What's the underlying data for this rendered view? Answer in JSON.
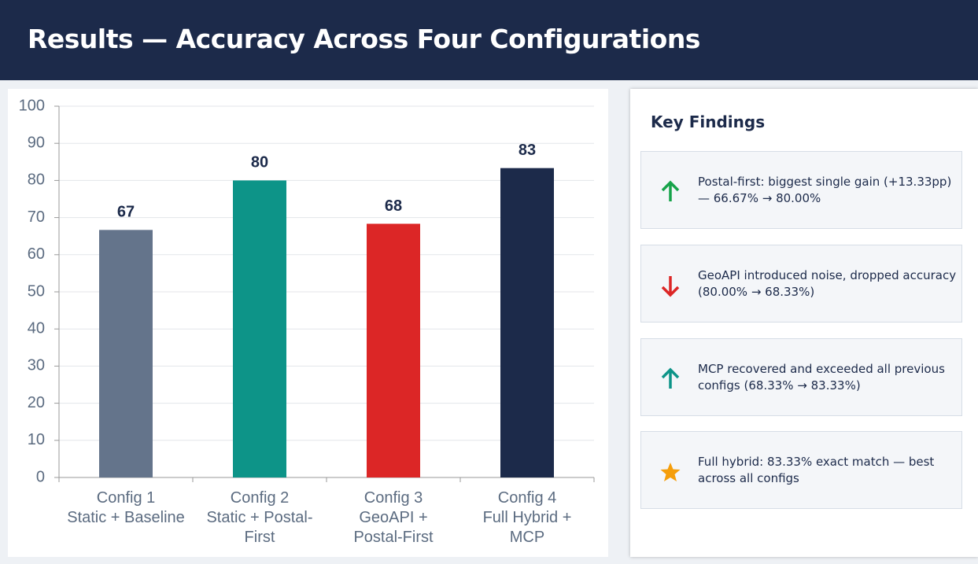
{
  "header": {
    "title": "Results — Accuracy Across Four Configurations"
  },
  "chart_data": {
    "type": "bar",
    "categories": [
      "Config 1\nStatic + Baseline",
      "Config 2\nStatic + Postal-\nFirst",
      "Config 3\nGeoAPI +\nPostal-First",
      "Config 4\nFull Hybrid +\nMCP"
    ],
    "values": [
      66.67,
      80,
      68.33,
      83.33
    ],
    "value_labels": [
      "67",
      "80",
      "68",
      "83"
    ],
    "colors": [
      "#64748b",
      "#0d9488",
      "#dc2626",
      "#1c2a4a"
    ],
    "ylim": [
      0,
      100
    ],
    "yticks": [
      0,
      10,
      20,
      30,
      40,
      50,
      60,
      70,
      80,
      90,
      100
    ],
    "grid": true
  },
  "findings": {
    "title": "Key Findings",
    "items": [
      {
        "text": "Postal-first: biggest single gain (+13.33pp) — 66.67% → 80.00%"
      },
      {
        "text": "GeoAPI introduced noise, dropped accuracy (80.00% → 68.33%)"
      },
      {
        "text": "MCP recovered and exceeded all previous configs (68.33% → 83.33%)"
      },
      {
        "text": "Full hybrid: 83.33% exact match — best across all configs"
      }
    ]
  }
}
